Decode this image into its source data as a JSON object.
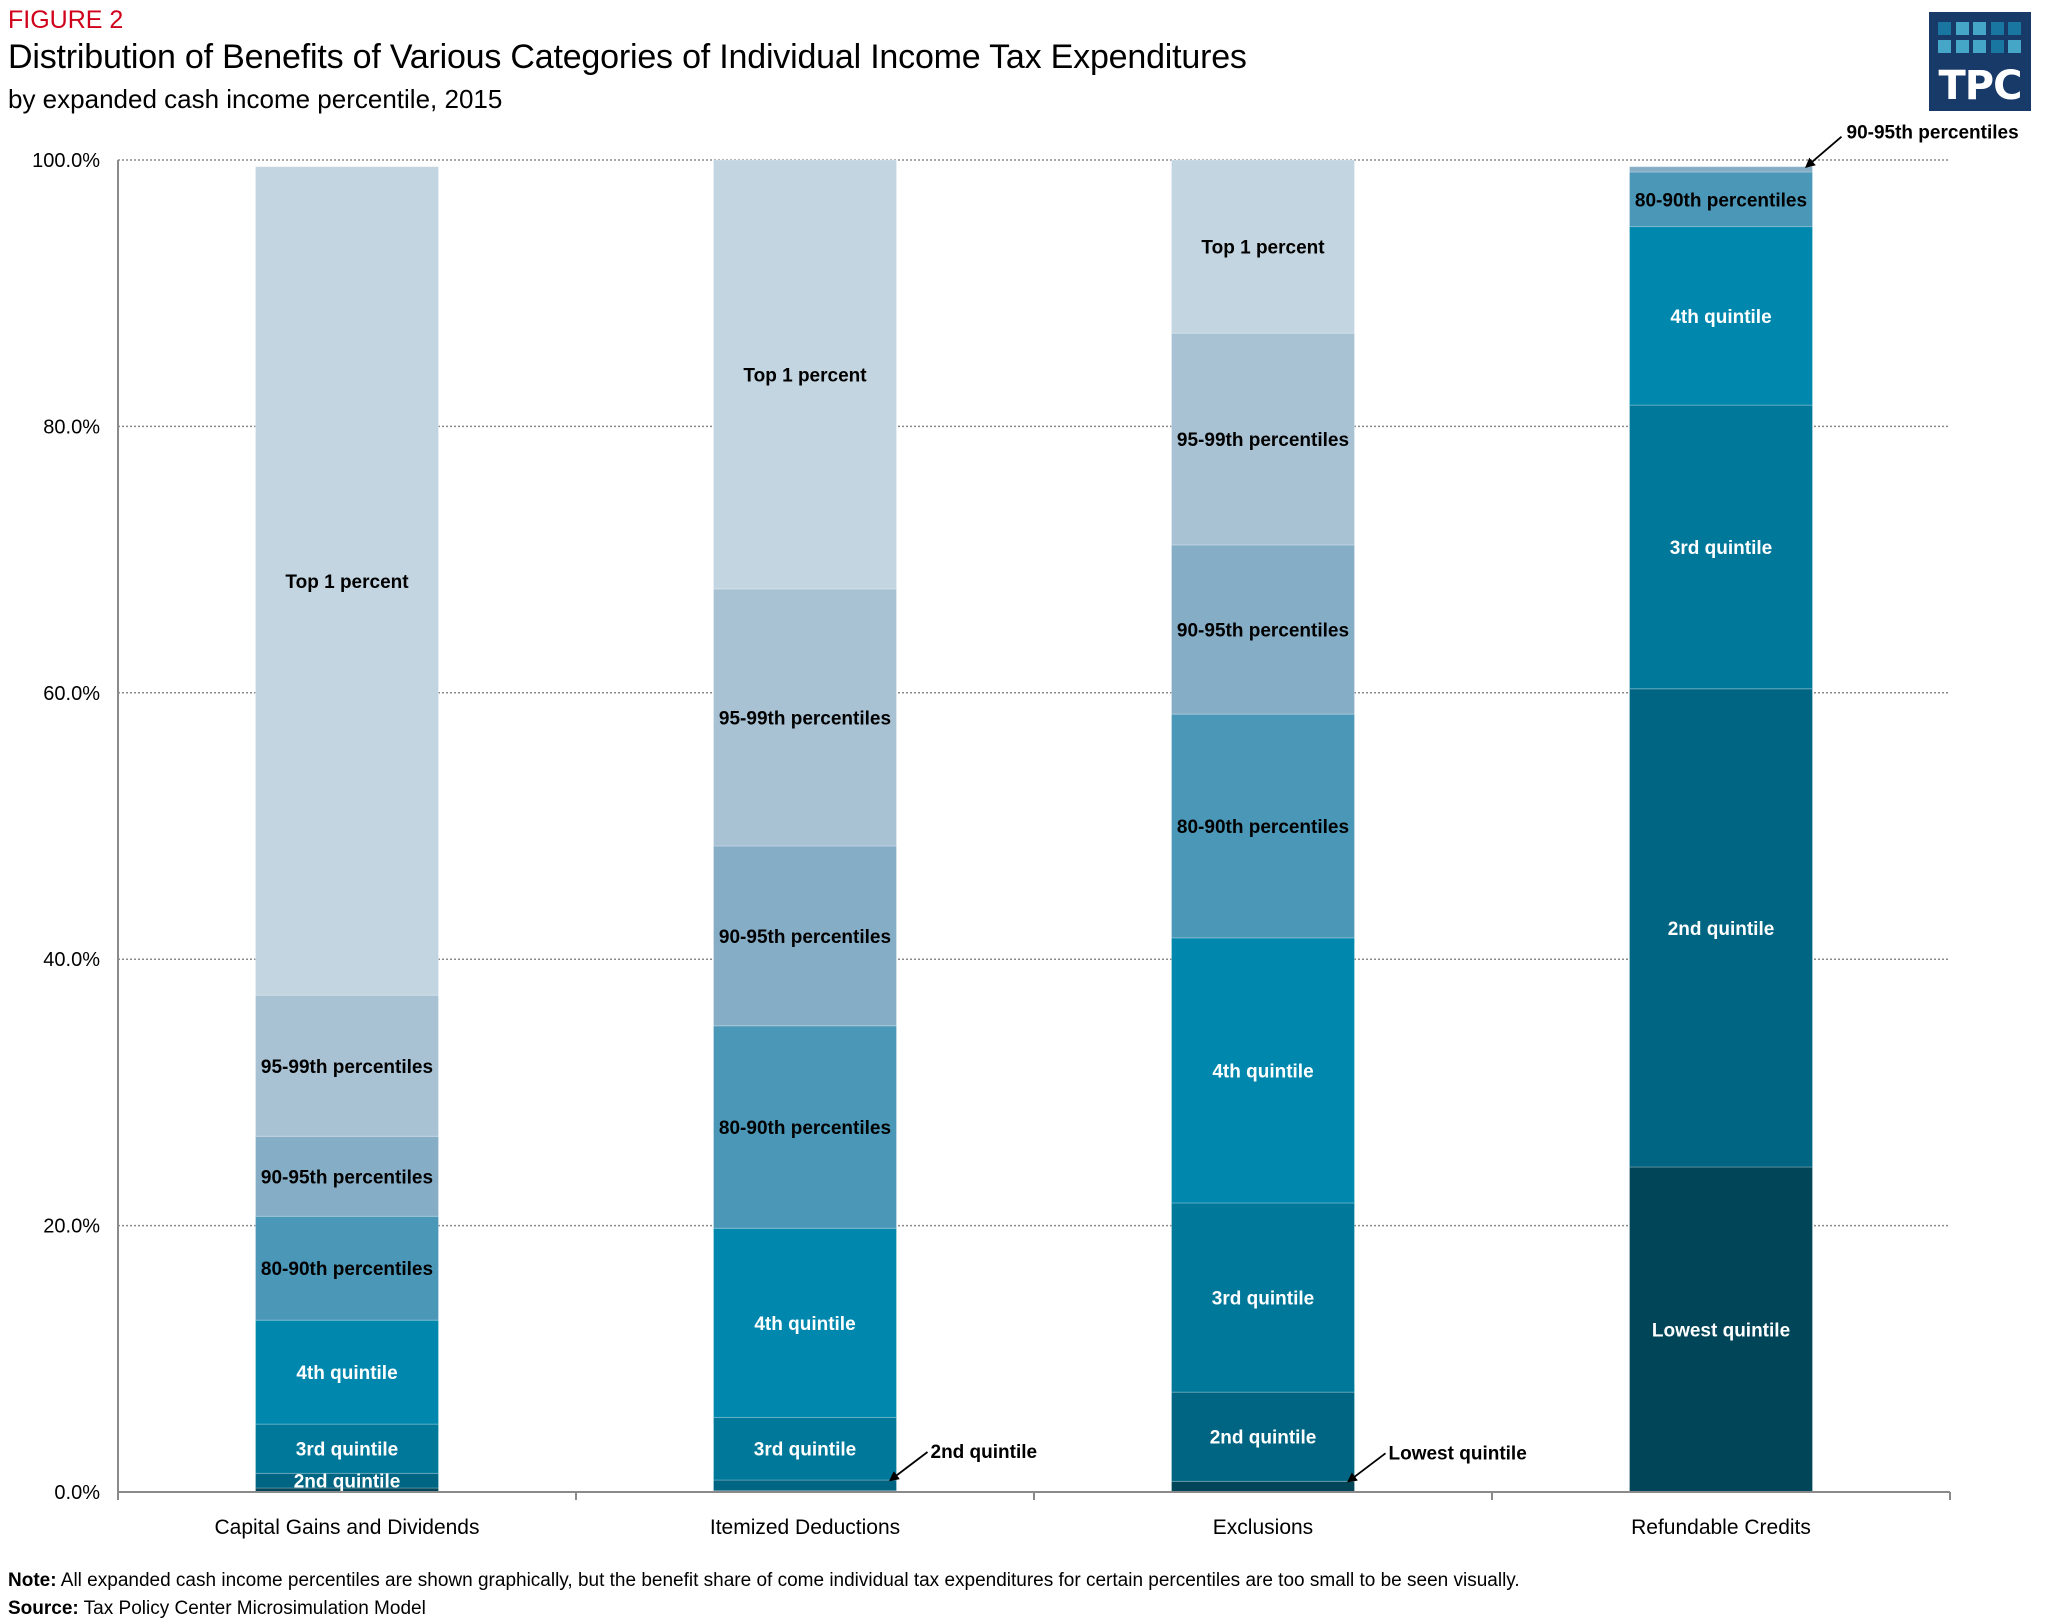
{
  "header": {
    "figure_label": "FIGURE 2",
    "title": "Distribution of Benefits of Various Categories of Individual Income Tax Expenditures",
    "subtitle": "by expanded cash income percentile, 2015"
  },
  "logo": {
    "text": "TPC",
    "background": "#183a69",
    "squares_top": [
      "#1876a0",
      "#45a6c8",
      "#45a6c8",
      "#1876a0",
      "#1876a0"
    ],
    "squares_bottom": [
      "#45a6c8",
      "#45a6c8",
      "#45a6c8",
      "#1876a0",
      "#45a6c8"
    ]
  },
  "footer": {
    "note_label": "Note:",
    "note_text": " All expanded cash income percentiles are shown graphically, but the benefit share of come individual tax expenditures for certain percentiles are too small to be seen visually.",
    "source_label": "Source:",
    "source_text": " Tax Policy Center Microsimulation Model"
  },
  "chart_data": {
    "type": "bar",
    "stacked": true,
    "title": "Distribution of Benefits of Various Categories of Individual Income Tax Expenditures",
    "subtitle": "by expanded cash income percentile, 2015",
    "xlabel": "",
    "ylabel": "",
    "ylim": [
      0,
      100
    ],
    "yticks": [
      0,
      20,
      40,
      60,
      80,
      100
    ],
    "ytick_labels": [
      "0.0%",
      "20.0%",
      "40.0%",
      "60.0%",
      "80.0%",
      "100.0%"
    ],
    "grid": "horizontal-dotted",
    "legend": "none (segments labeled inline)",
    "categories": [
      "Capital Gains and Dividends",
      "Itemized Deductions",
      "Exclusions",
      "Refundable Credits"
    ],
    "series": [
      {
        "name": "Lowest quintile",
        "color": "#004658",
        "text_color": "#ffffff",
        "values": [
          0.3,
          0.1,
          0.8,
          24.4
        ]
      },
      {
        "name": "2nd quintile",
        "color": "#006582",
        "text_color": "#ffffff",
        "values": [
          1.1,
          0.8,
          6.7,
          35.9
        ]
      },
      {
        "name": "3rd quintile",
        "color": "#00789a",
        "text_color": "#ffffff",
        "values": [
          3.7,
          4.7,
          14.2,
          21.3
        ]
      },
      {
        "name": "4th quintile",
        "color": "#0087ad",
        "text_color": "#ffffff",
        "values": [
          7.8,
          14.2,
          19.9,
          13.4
        ]
      },
      {
        "name": "80-90th percentiles",
        "color": "#4b97b8",
        "text_color": "#000000",
        "values": [
          7.8,
          15.2,
          16.8,
          4.1
        ]
      },
      {
        "name": "90-95th percentiles",
        "color": "#86adc6",
        "text_color": "#000000",
        "values": [
          6.0,
          13.5,
          12.7,
          0.4
        ]
      },
      {
        "name": "95-99th percentiles",
        "color": "#a8c2d4",
        "text_color": "#000000",
        "values": [
          10.6,
          19.3,
          15.9,
          0.0
        ]
      },
      {
        "name": "Top 1 percent",
        "color": "#c3d5e0",
        "text_color": "#000000",
        "values": [
          62.2,
          32.2,
          13.0,
          0.0
        ]
      }
    ],
    "inline_labels": [
      [
        null,
        "2nd quintile",
        "3rd quintile",
        "4th quintile",
        "80-90th percentiles",
        "90-95th percentiles",
        "95-99th percentiles",
        "Top 1 percent"
      ],
      [
        null,
        null,
        "3rd quintile",
        "4th quintile",
        "80-90th percentiles",
        "90-95th percentiles",
        "95-99th percentiles",
        "Top 1 percent"
      ],
      [
        null,
        "2nd quintile",
        "3rd quintile",
        "4th quintile",
        "80-90th percentiles",
        "90-95th percentiles",
        "95-99th percentiles",
        "Top 1 percent"
      ],
      [
        "Lowest quintile",
        "2nd quintile",
        "3rd quintile",
        "4th quintile",
        "80-90th percentiles",
        null,
        null,
        null
      ]
    ],
    "annotations": [
      {
        "text": "2nd quintile",
        "category": "Itemized Deductions",
        "series": "2nd quintile"
      },
      {
        "text": "Lowest quintile",
        "category": "Exclusions",
        "series": "Lowest quintile"
      },
      {
        "text": "90-95th percentiles",
        "category": "Refundable Credits",
        "series": "90-95th percentiles"
      }
    ]
  }
}
